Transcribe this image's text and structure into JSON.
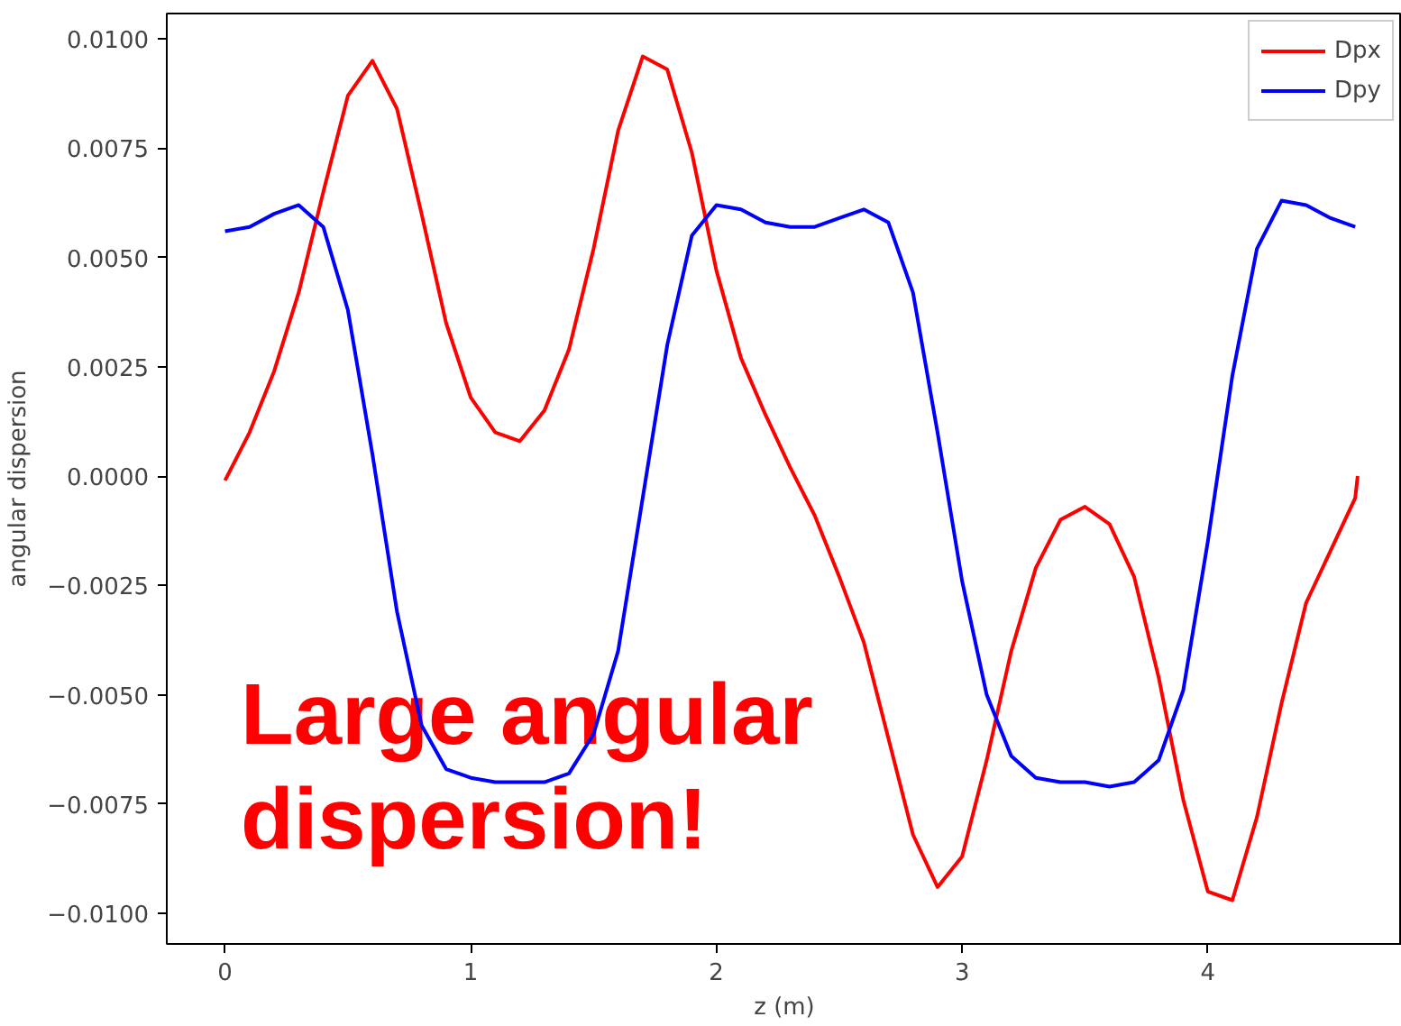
{
  "chart_data": {
    "type": "line",
    "xlabel": "z (m)",
    "ylabel": "angular dispersion",
    "annotations": [
      "Large angular\ndispersion!"
    ],
    "xlim": [
      -0.237,
      4.79
    ],
    "ylim": [
      -0.0107,
      0.01058
    ],
    "xticks": [
      0,
      1,
      2,
      3,
      4
    ],
    "yticks": [
      {
        "value": -0.01,
        "label": "−0.0100"
      },
      {
        "value": -0.0075,
        "label": "−0.0075"
      },
      {
        "value": -0.005,
        "label": "−0.0050"
      },
      {
        "value": -0.0025,
        "label": "−0.0025"
      },
      {
        "value": 0,
        "label": "0.0000"
      },
      {
        "value": 0.0025,
        "label": "0.0025"
      },
      {
        "value": 0.005,
        "label": "0.0050"
      },
      {
        "value": 0.0075,
        "label": "0.0075"
      },
      {
        "value": 0.01,
        "label": "0.0100"
      }
    ],
    "grid": false,
    "legend": "top right",
    "line_style": "solid",
    "series": [
      {
        "name": "Dpx",
        "color": "#ff0000",
        "x": [
          0,
          0.1,
          0.2,
          0.3,
          0.4,
          0.5,
          0.6,
          0.7,
          0.8,
          0.9,
          1.0,
          1.1,
          1.2,
          1.3,
          1.4,
          1.5,
          1.6,
          1.7,
          1.8,
          1.9,
          2.0,
          2.1,
          2.2,
          2.3,
          2.4,
          2.5,
          2.6,
          2.7,
          2.8,
          2.9,
          3.0,
          3.1,
          3.2,
          3.3,
          3.4,
          3.5,
          3.6,
          3.7,
          3.8,
          3.9,
          4.0,
          4.1,
          4.2,
          4.3,
          4.4,
          4.5,
          4.6,
          4.61
        ],
        "values": [
          -0.0001,
          0.001,
          0.0024,
          0.0042,
          0.0065,
          0.0087,
          0.0095,
          0.0084,
          0.006,
          0.0035,
          0.0018,
          0.001,
          0.0008,
          0.0015,
          0.0029,
          0.0052,
          0.0079,
          0.0096,
          0.0093,
          0.0074,
          0.0047,
          0.0027,
          0.0014,
          0.0002,
          -0.0009,
          -0.0023,
          -0.0038,
          -0.006,
          -0.0082,
          -0.0094,
          -0.0087,
          -0.0065,
          -0.004,
          -0.0021,
          -0.001,
          -0.0007,
          -0.0011,
          -0.0023,
          -0.0046,
          -0.0074,
          -0.0095,
          -0.0097,
          -0.0078,
          -0.0052,
          -0.0029,
          -0.0017,
          -0.0005,
          0.0
        ]
      },
      {
        "name": "Dpy",
        "color": "#0000ff",
        "x": [
          0,
          0.1,
          0.2,
          0.3,
          0.4,
          0.5,
          0.6,
          0.7,
          0.8,
          0.9,
          1.0,
          1.1,
          1.2,
          1.3,
          1.4,
          1.5,
          1.6,
          1.7,
          1.8,
          1.9,
          2.0,
          2.1,
          2.2,
          2.3,
          2.4,
          2.5,
          2.6,
          2.7,
          2.8,
          2.9,
          3.0,
          3.1,
          3.2,
          3.3,
          3.4,
          3.5,
          3.6,
          3.7,
          3.8,
          3.9,
          4.0,
          4.1,
          4.2,
          4.3,
          4.4,
          4.5,
          4.6
        ],
        "values": [
          0.0056,
          0.0057,
          0.006,
          0.0062,
          0.0057,
          0.0038,
          0.0005,
          -0.0031,
          -0.0057,
          -0.0067,
          -0.0069,
          -0.007,
          -0.007,
          -0.007,
          -0.0068,
          -0.0059,
          -0.004,
          -0.0005,
          0.003,
          0.0055,
          0.0062,
          0.0061,
          0.0058,
          0.0057,
          0.0057,
          0.0059,
          0.0061,
          0.0058,
          0.0042,
          0.001,
          -0.0024,
          -0.005,
          -0.0064,
          -0.0069,
          -0.007,
          -0.007,
          -0.0071,
          -0.007,
          -0.0065,
          -0.0049,
          -0.0015,
          0.0023,
          0.0052,
          0.0063,
          0.0062,
          0.0059,
          0.0057
        ]
      }
    ]
  }
}
